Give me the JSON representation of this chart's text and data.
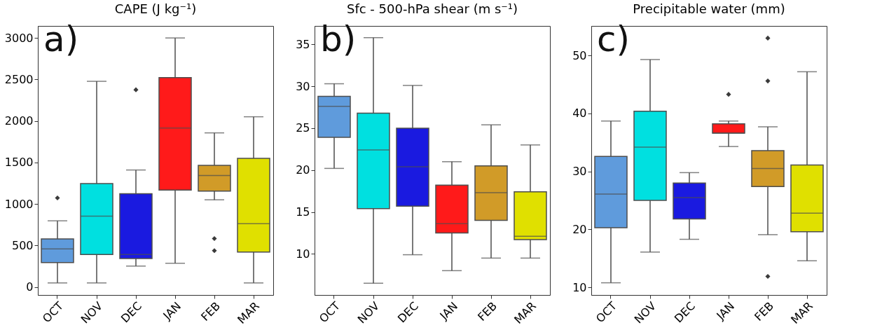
{
  "chart_data": [
    {
      "type": "box",
      "title": "CAPE (J kg⁻¹)",
      "categories": [
        "OCT",
        "NOV",
        "DEC",
        "JAN",
        "FEB",
        "MAR"
      ],
      "colors": [
        "#5f9bdc",
        "#00e0e0",
        "#1a1ae0",
        "#ff1a1a",
        "#d19b28",
        "#e0e000"
      ],
      "ylim": [
        -95,
        3145
      ],
      "yticks": [
        0,
        500,
        1000,
        1500,
        2000,
        2500,
        3000
      ],
      "grid": false,
      "annotations": [
        "a)"
      ],
      "boxes": [
        {
          "low": 50,
          "q1": 295,
          "median": 460,
          "q3": 579,
          "high": 798,
          "outliers": [
            1073
          ]
        },
        {
          "low": 50,
          "q1": 393,
          "median": 854,
          "q3": 1247,
          "high": 2478
        },
        {
          "low": 253,
          "q1": 343,
          "median": 393,
          "q3": 1124,
          "high": 1410,
          "outliers": [
            2376
          ]
        },
        {
          "low": 287,
          "q1": 1169,
          "median": 1916,
          "q3": 2522,
          "high": 3000
        },
        {
          "low": 1051,
          "q1": 1155,
          "median": 1343,
          "q3": 1466,
          "high": 1857,
          "outliers": [
            584,
            438
          ]
        },
        {
          "low": 50,
          "q1": 421,
          "median": 764,
          "q3": 1551,
          "high": 2051
        }
      ]
    },
    {
      "type": "box",
      "title": "Sfc - 500-hPa shear (m s⁻¹)",
      "categories": [
        "OCT",
        "NOV",
        "DEC",
        "JAN",
        "FEB",
        "MAR"
      ],
      "colors": [
        "#5f9bdc",
        "#00e0e0",
        "#1a1ae0",
        "#ff1a1a",
        "#d19b28",
        "#e0e000"
      ],
      "ylim": [
        5.1,
        37.2
      ],
      "yticks": [
        10,
        15,
        20,
        25,
        30,
        35
      ],
      "grid": false,
      "annotations": [
        "b)"
      ],
      "boxes": [
        {
          "low": 20.2,
          "q1": 23.9,
          "median": 27.6,
          "q3": 28.8,
          "high": 30.3
        },
        {
          "low": 6.5,
          "q1": 15.4,
          "median": 22.4,
          "q3": 26.8,
          "high": 35.8
        },
        {
          "low": 9.9,
          "q1": 15.7,
          "median": 20.4,
          "q3": 25.0,
          "high": 30.1
        },
        {
          "low": 8.0,
          "q1": 12.5,
          "median": 13.6,
          "q3": 18.2,
          "high": 21.0
        },
        {
          "low": 9.5,
          "q1": 14.0,
          "median": 17.3,
          "q3": 20.5,
          "high": 25.4
        },
        {
          "low": 9.5,
          "q1": 11.7,
          "median": 12.1,
          "q3": 17.4,
          "high": 23.0
        }
      ]
    },
    {
      "type": "box",
      "title": "Precipitable water (mm)",
      "categories": [
        "OCT",
        "NOV",
        "DEC",
        "JAN",
        "FEB",
        "MAR"
      ],
      "colors": [
        "#5f9bdc",
        "#00e0e0",
        "#1a1ae0",
        "#ff1a1a",
        "#d19b28",
        "#e0e000"
      ],
      "ylim": [
        8.7,
        55.1
      ],
      "yticks": [
        10,
        20,
        30,
        40,
        50
      ],
      "grid": false,
      "annotations": [
        "c)"
      ],
      "boxes": [
        {
          "low": 10.8,
          "q1": 20.3,
          "median": 26.1,
          "q3": 32.6,
          "high": 38.7
        },
        {
          "low": 16.1,
          "q1": 25.0,
          "median": 34.2,
          "q3": 40.4,
          "high": 49.3
        },
        {
          "low": 18.3,
          "q1": 21.8,
          "median": 25.5,
          "q3": 28.0,
          "high": 29.8
        },
        {
          "low": 34.3,
          "q1": 36.6,
          "median": 36.6,
          "q3": 38.2,
          "high": 38.7,
          "outliers": [
            43.3
          ]
        },
        {
          "low": 19.1,
          "q1": 27.4,
          "median": 30.5,
          "q3": 33.6,
          "high": 37.7,
          "outliers": [
            53.0,
            45.6,
            11.9
          ]
        },
        {
          "low": 14.6,
          "q1": 19.6,
          "median": 22.8,
          "q3": 31.1,
          "high": 47.2
        }
      ]
    }
  ]
}
